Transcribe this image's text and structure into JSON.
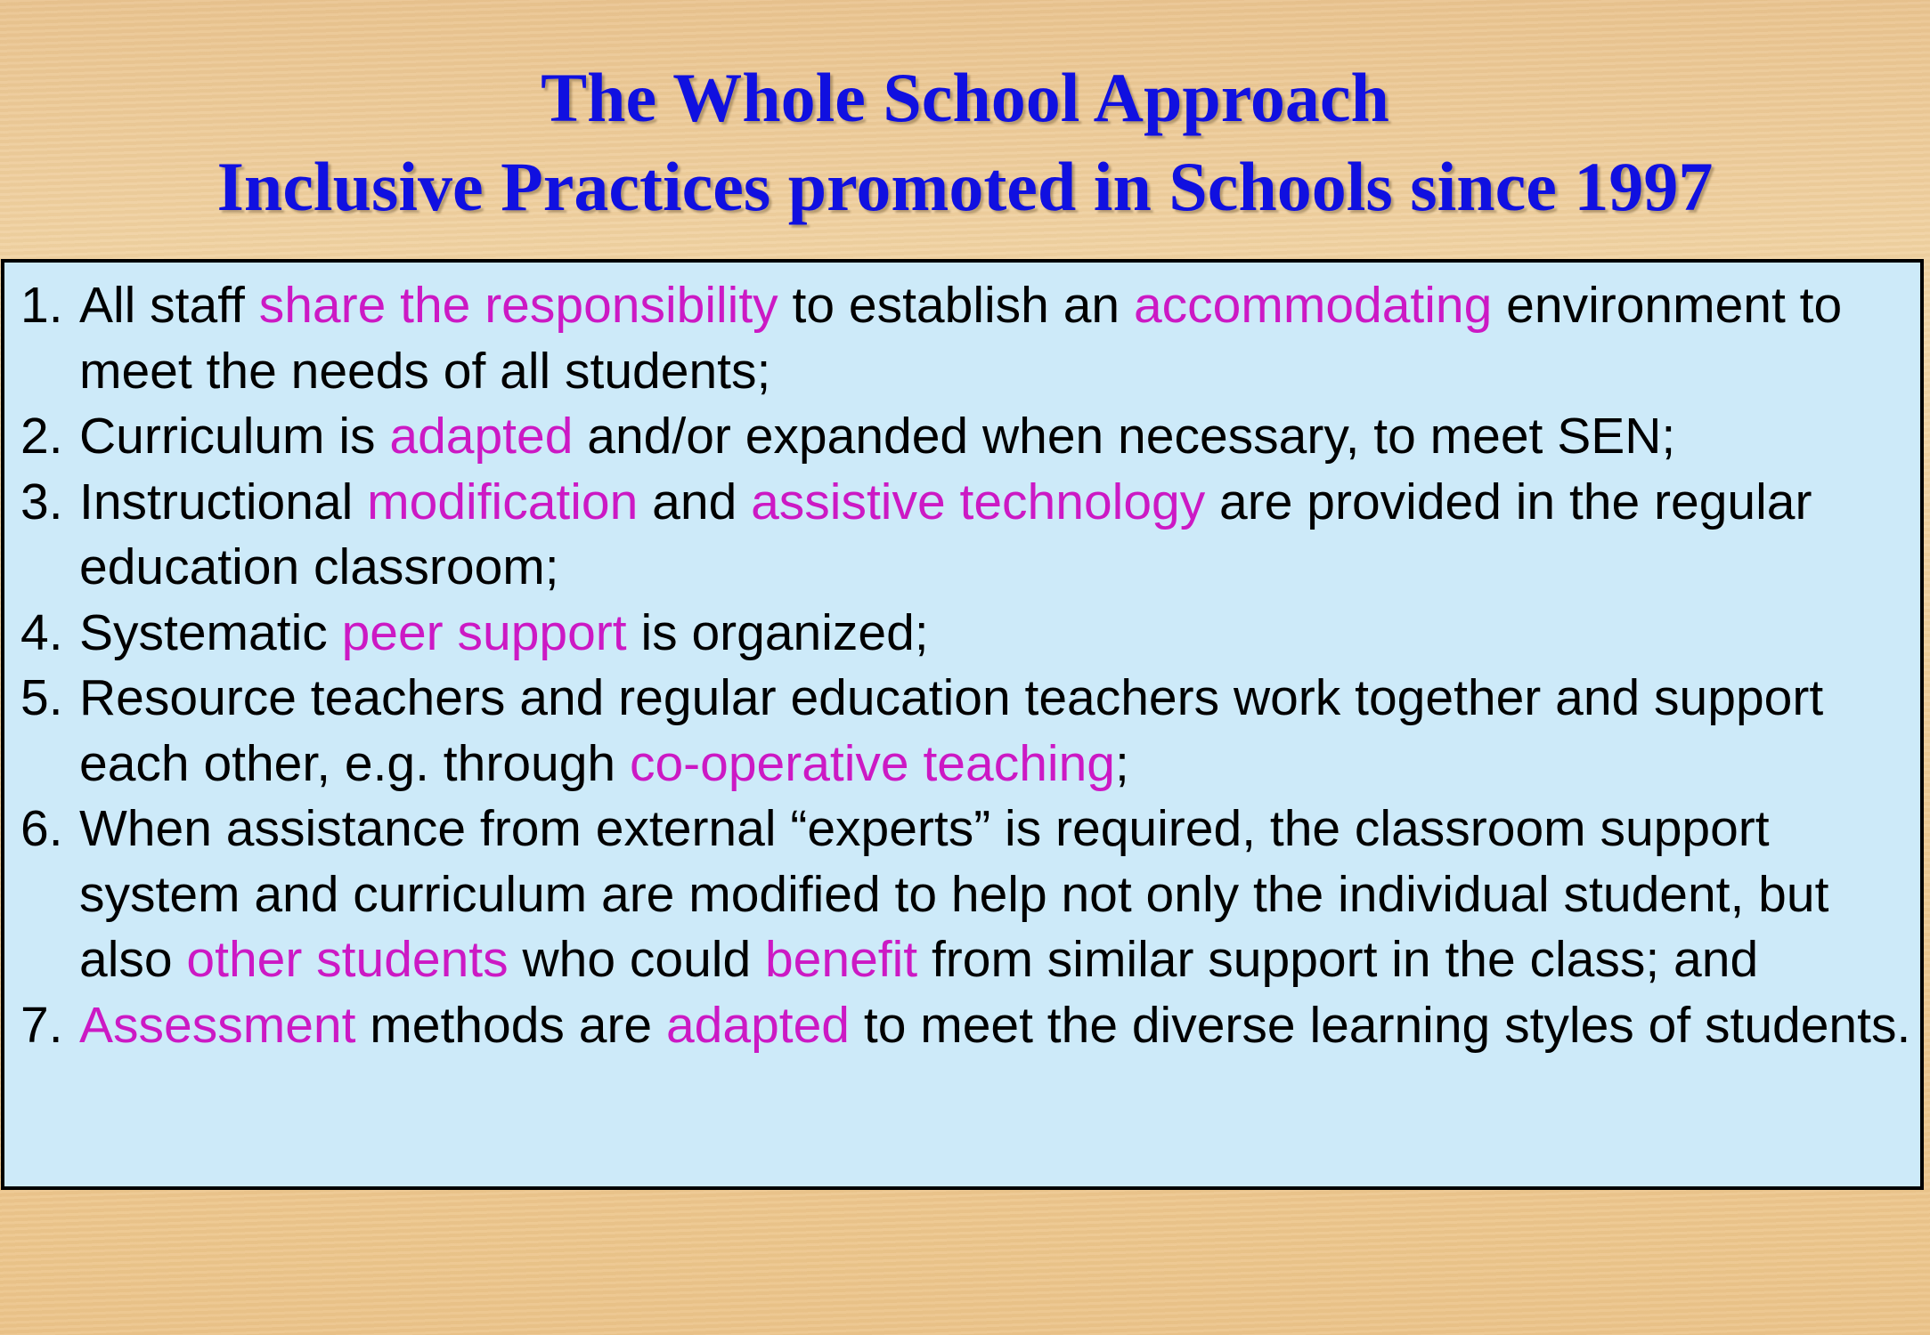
{
  "title": {
    "line1": "The Whole School Approach",
    "line2": "Inclusive Practices promoted in Schools since 1997"
  },
  "colors": {
    "title": "#1010e0",
    "highlight": "#cc19c4",
    "box_background": "#cdeaf9",
    "text": "#000000"
  },
  "items": [
    {
      "num": "1.",
      "segments": [
        {
          "text": "All staff ",
          "highlight": false
        },
        {
          "text": "share the responsibility",
          "highlight": true
        },
        {
          "text": " to establish an ",
          "highlight": false
        },
        {
          "text": "accommodating",
          "highlight": true
        },
        {
          "text": " environment to meet the needs of all students;",
          "highlight": false
        }
      ]
    },
    {
      "num": "2.",
      "segments": [
        {
          "text": "Curriculum is ",
          "highlight": false
        },
        {
          "text": "adapted",
          "highlight": true
        },
        {
          "text": " and/or expanded when necessary, to meet SEN;",
          "highlight": false
        }
      ]
    },
    {
      "num": "3.",
      "segments": [
        {
          "text": "Instructional ",
          "highlight": false
        },
        {
          "text": "modification",
          "highlight": true
        },
        {
          "text": " and ",
          "highlight": false
        },
        {
          "text": "assistive technology",
          "highlight": true
        },
        {
          "text": " are provided in the regular education classroom;",
          "highlight": false
        }
      ]
    },
    {
      "num": "4.",
      "segments": [
        {
          "text": "Systematic ",
          "highlight": false
        },
        {
          "text": "peer support",
          "highlight": true
        },
        {
          "text": " is organized;",
          "highlight": false
        }
      ]
    },
    {
      "num": "5.",
      "segments": [
        {
          "text": "Resource teachers and regular education teachers work together and support each other, e.g. through ",
          "highlight": false
        },
        {
          "text": "co-operative teaching",
          "highlight": true
        },
        {
          "text": ";",
          "highlight": false
        }
      ]
    },
    {
      "num": "6.",
      "segments": [
        {
          "text": "When assistance from external “experts” is required, the classroom support system and curriculum are modified to help not only the individual student, but also ",
          "highlight": false
        },
        {
          "text": "other students",
          "highlight": true
        },
        {
          "text": " who could ",
          "highlight": false
        },
        {
          "text": "benefit",
          "highlight": true
        },
        {
          "text": " from similar support in the class; and",
          "highlight": false
        }
      ]
    },
    {
      "num": "7.",
      "segments": [
        {
          "text": "Assessment",
          "highlight": true
        },
        {
          "text": " methods are ",
          "highlight": false
        },
        {
          "text": "adapted",
          "highlight": true
        },
        {
          "text": " to meet the diverse learning styles of students.",
          "highlight": false
        }
      ]
    }
  ]
}
